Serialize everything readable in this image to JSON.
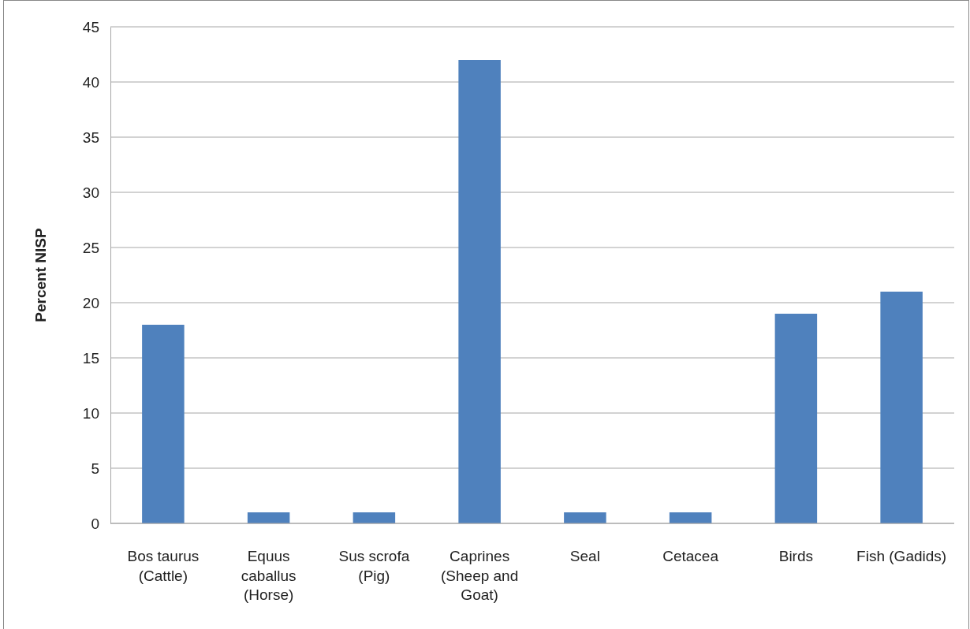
{
  "chart_data": {
    "type": "bar",
    "ylabel": "Percent NISP",
    "categories": [
      "Bos taurus (Cattle)",
      "Equus caballus (Horse)",
      "Sus scrofa (Pig)",
      "Caprines (Sheep and Goat)",
      "Seal",
      "Cetacea",
      "Birds",
      "Fish (Gadids)"
    ],
    "values": [
      18,
      1,
      1,
      42,
      1,
      1,
      19,
      21
    ],
    "color": "#4f81bd",
    "ylim": [
      0,
      45
    ],
    "yticks": [
      0,
      5,
      10,
      15,
      20,
      25,
      30,
      35,
      40,
      45
    ],
    "grid": "y"
  }
}
